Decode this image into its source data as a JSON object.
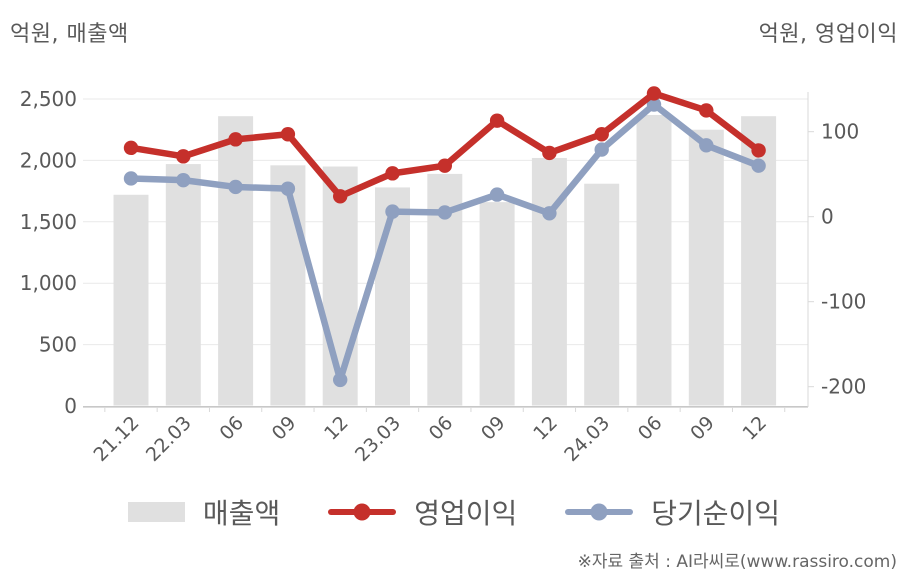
{
  "header": {
    "left_title": "억원, 매출액",
    "right_title": "억원, 영업이익"
  },
  "chart_data": {
    "type": "combo",
    "categories": [
      "21.12",
      "22.03",
      "06",
      "09",
      "12",
      "23.03",
      "06",
      "09",
      "12",
      "24.03",
      "06",
      "09",
      "12"
    ],
    "series": [
      {
        "name": "매출액",
        "type": "bar",
        "axis": "left",
        "color": "#e0e0e0",
        "values": [
          1720,
          1970,
          2360,
          1960,
          1950,
          1780,
          1890,
          1660,
          2020,
          1810,
          2370,
          2250,
          2360
        ]
      },
      {
        "name": "영업이익",
        "type": "line",
        "axis": "right",
        "color": "#c5302b",
        "values": [
          81,
          71,
          91,
          97,
          24,
          51,
          60,
          113,
          75,
          97,
          145,
          125,
          78
        ]
      },
      {
        "name": "당기순이익",
        "type": "line",
        "axis": "right",
        "color": "#8fa0c0",
        "values": [
          45,
          43,
          35,
          33,
          -192,
          6,
          5,
          26,
          4,
          79,
          132,
          84,
          60
        ]
      }
    ],
    "left_axis": {
      "title": "억원, 매출액",
      "unit": "억원",
      "ticks": [
        0,
        500,
        1000,
        1500,
        2000,
        2500
      ],
      "tick_labels": [
        "0",
        "500",
        "1,000",
        "1,500",
        "2,000",
        "2,500"
      ],
      "range": [
        0,
        2500
      ]
    },
    "right_axis": {
      "title": "억원, 영업이익",
      "unit": "억원",
      "ticks": [
        100,
        0,
        -100,
        -200
      ],
      "tick_labels": [
        "100",
        "0",
        "-100",
        "-200"
      ],
      "range": [
        -225,
        140
      ]
    },
    "legend": [
      "매출액",
      "영업이익",
      "당기순이익"
    ],
    "legend_position": "bottom",
    "grid": true
  },
  "footer": {
    "source": "※자료 출처 : AI라씨로(www.rassiro.com)"
  }
}
